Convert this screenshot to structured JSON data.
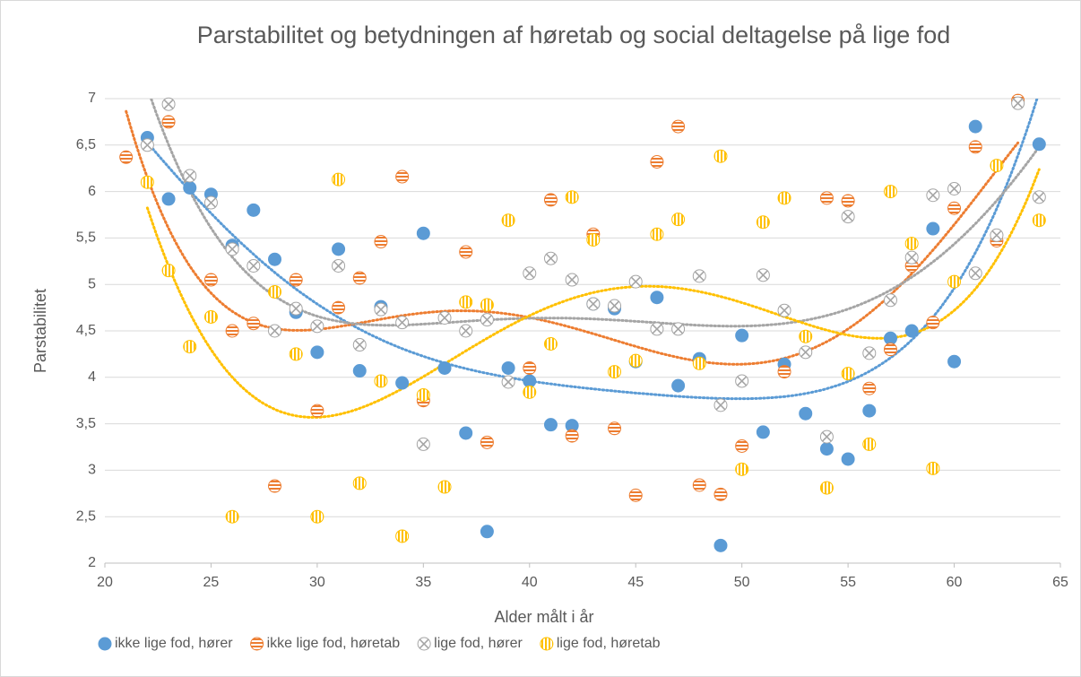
{
  "chart_data": {
    "type": "scatter",
    "title": "Parstabilitet og betydningen af høretab og social deltagelse på lige fod",
    "xlabel": "Alder målt i år",
    "ylabel": "Parstabilitet",
    "xlim": [
      20,
      65
    ],
    "xticks": [
      20,
      25,
      30,
      35,
      40,
      45,
      50,
      55,
      60,
      65
    ],
    "ylim": [
      2,
      7
    ],
    "yticks": [
      2,
      {
        "value": 2.5,
        "label": "2,5"
      },
      3,
      {
        "value": 3.5,
        "label": "3,5"
      },
      4,
      {
        "value": 4.5,
        "label": "4,5"
      },
      5,
      {
        "value": 5.5,
        "label": "5,5"
      },
      6,
      {
        "value": 6.5,
        "label": "6,5"
      },
      7
    ],
    "grid": true,
    "legend": "bottom",
    "trendline": {
      "type": "polynomial",
      "order": 5,
      "style": "dotted"
    },
    "series": [
      {
        "name": "ikke lige fod, hører",
        "color": "#5b9bd5",
        "marker": "solid",
        "x": [
          22,
          23,
          24,
          25,
          26,
          27,
          28,
          29,
          30,
          31,
          32,
          33,
          34,
          35,
          36,
          37,
          38,
          39,
          40,
          41,
          42,
          43,
          44,
          45,
          46,
          47,
          48,
          49,
          50,
          51,
          52,
          53,
          54,
          55,
          56,
          57,
          58,
          59,
          60,
          61,
          64
        ],
        "values": [
          6.58,
          5.92,
          6.04,
          5.97,
          5.42,
          5.8,
          5.27,
          4.7,
          4.27,
          5.38,
          4.07,
          4.76,
          3.94,
          5.55,
          4.1,
          3.4,
          2.34,
          4.1,
          3.96,
          3.49,
          3.48,
          4.79,
          4.74,
          4.17,
          4.86,
          3.91,
          4.2,
          2.19,
          4.45,
          3.41,
          4.14,
          3.61,
          3.23,
          3.12,
          3.64,
          4.42,
          4.5,
          5.6,
          4.17,
          6.7,
          6.51
        ]
      },
      {
        "name": "ikke lige fod, høretab",
        "color": "#ed7d31",
        "marker": "hstripe",
        "x": [
          21,
          23,
          25,
          26,
          27,
          28,
          29,
          30,
          31,
          32,
          33,
          34,
          35,
          37,
          38,
          40,
          41,
          42,
          43,
          44,
          45,
          46,
          47,
          48,
          49,
          50,
          52,
          54,
          55,
          56,
          57,
          58,
          59,
          60,
          61,
          62,
          63
        ],
        "values": [
          6.37,
          6.75,
          5.05,
          4.5,
          4.58,
          2.83,
          5.05,
          3.64,
          4.75,
          5.07,
          5.46,
          6.16,
          3.75,
          5.35,
          3.3,
          4.1,
          5.91,
          3.37,
          5.54,
          3.45,
          2.73,
          6.32,
          6.7,
          2.84,
          2.74,
          3.26,
          4.06,
          5.93,
          5.9,
          3.88,
          4.3,
          5.2,
          4.59,
          5.82,
          6.48,
          5.47,
          6.98
        ]
      },
      {
        "name": "lige fod, hører",
        "color": "#a5a5a5",
        "marker": "cross",
        "x": [
          22,
          23,
          24,
          25,
          26,
          27,
          28,
          29,
          30,
          31,
          32,
          33,
          34,
          35,
          36,
          37,
          38,
          39,
          40,
          41,
          42,
          43,
          44,
          45,
          46,
          47,
          48,
          49,
          50,
          51,
          52,
          53,
          54,
          55,
          56,
          57,
          58,
          59,
          60,
          61,
          62,
          63,
          64
        ],
        "values": [
          6.5,
          6.94,
          6.17,
          5.88,
          5.38,
          5.2,
          4.5,
          4.74,
          4.55,
          5.2,
          4.35,
          4.73,
          4.59,
          3.28,
          4.64,
          4.5,
          4.62,
          3.95,
          5.12,
          5.28,
          5.05,
          4.79,
          4.77,
          5.03,
          4.52,
          4.52,
          5.09,
          3.7,
          3.96,
          5.1,
          4.72,
          4.27,
          3.36,
          5.73,
          4.26,
          4.83,
          5.29,
          5.96,
          6.03,
          5.12,
          5.53,
          6.95,
          5.94
        ]
      },
      {
        "name": "lige fod, høretab",
        "color": "#ffc000",
        "marker": "vstripe",
        "x": [
          22,
          23,
          24,
          25,
          26,
          28,
          29,
          30,
          31,
          32,
          33,
          34,
          35,
          36,
          37,
          38,
          39,
          40,
          41,
          42,
          43,
          44,
          45,
          46,
          47,
          48,
          49,
          50,
          51,
          52,
          53,
          54,
          55,
          56,
          57,
          58,
          59,
          60,
          62,
          64
        ],
        "values": [
          6.1,
          5.15,
          4.33,
          4.65,
          2.5,
          4.92,
          4.25,
          2.5,
          6.13,
          2.86,
          3.96,
          2.29,
          3.81,
          2.82,
          4.81,
          4.78,
          5.69,
          3.84,
          4.36,
          5.94,
          5.48,
          4.06,
          4.18,
          5.54,
          5.7,
          4.15,
          6.38,
          3.01,
          5.67,
          5.93,
          4.44,
          2.81,
          4.04,
          3.28,
          6.0,
          5.44,
          3.02,
          5.03,
          6.28,
          5.69
        ]
      }
    ]
  }
}
